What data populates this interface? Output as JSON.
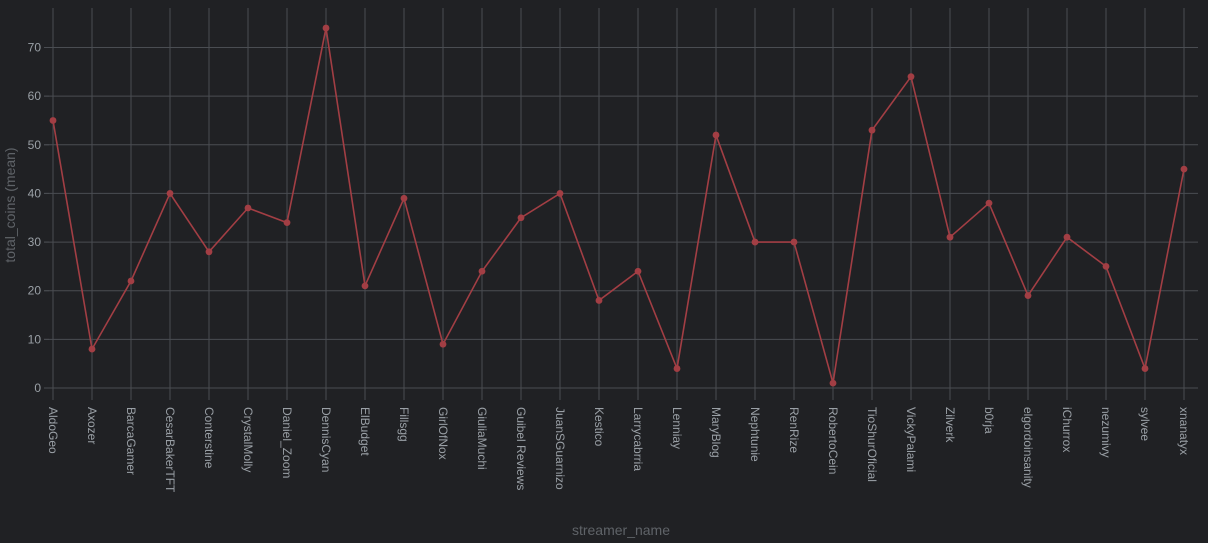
{
  "chart_data": {
    "type": "line",
    "xlabel": "streamer_name",
    "ylabel": "total_coins (mean)",
    "ylim": [
      -3,
      78
    ],
    "yticks": [
      0,
      10,
      20,
      30,
      40,
      50,
      60,
      70
    ],
    "grid": true,
    "categories": [
      "AldoGeo",
      "Axozer",
      "BarcaGamer",
      "CesarBakerTFT",
      "Conterstine",
      "CrystalMolly",
      "Daniel_Zoom",
      "DennisCyan",
      "ElBudget",
      "Fillsgg",
      "GirlOfNox",
      "GiuliaMuchi",
      "Guibel Reviews",
      "JuanSGuarnizo",
      "Kestico",
      "Larrycabrria",
      "Lenniay",
      "MaryBlog",
      "Nephtunie",
      "RenRize",
      "RobertoCein",
      "TioShurOficial",
      "VickyPalami",
      "Zilverk",
      "b0rja",
      "elgordoinsanity",
      "iChurrox",
      "nezumivy",
      "sylvee",
      "xnanatyx"
    ],
    "series": [
      {
        "values": [
          55,
          8,
          22,
          40,
          28,
          37,
          34,
          74,
          21,
          39,
          9,
          24,
          35,
          40,
          18,
          24,
          4,
          52,
          30,
          30,
          1,
          53,
          64,
          31,
          38,
          19,
          31,
          25,
          4,
          45
        ]
      }
    ],
    "colors": {
      "background": "#202124",
      "grid": "#4a4d52",
      "line": "#a23e44",
      "marker": "#a23e44",
      "tick": "#9aa0a6",
      "title": "#5f6368"
    }
  }
}
